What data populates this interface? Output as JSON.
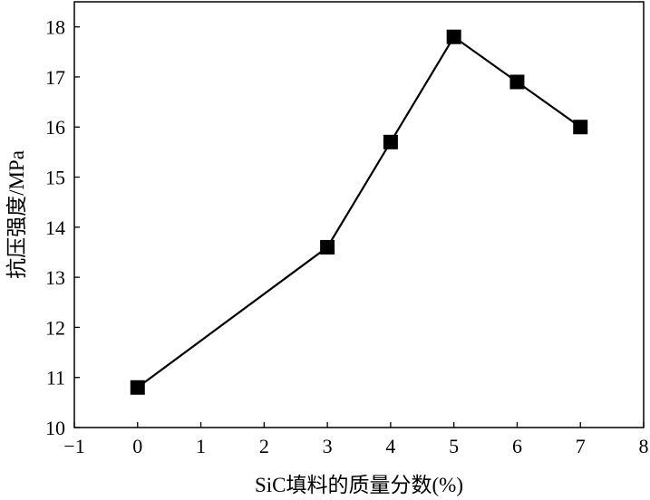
{
  "chart_data": {
    "type": "line",
    "title": "",
    "xlabel": "SiC填料的质量分数(%)",
    "ylabel": "抗压强度/MPa",
    "xlim": [
      -1,
      8
    ],
    "ylim": [
      10,
      18.5
    ],
    "xticks": [
      -1,
      0,
      1,
      2,
      3,
      4,
      5,
      6,
      7,
      8
    ],
    "xtick_labels": [
      "−1",
      "0",
      "1",
      "2",
      "3",
      "4",
      "5",
      "6",
      "7",
      "8"
    ],
    "yticks": [
      10,
      11,
      12,
      13,
      14,
      15,
      16,
      17,
      18
    ],
    "ytick_labels": [
      "10",
      "11",
      "12",
      "13",
      "14",
      "15",
      "16",
      "17",
      "18"
    ],
    "grid": false,
    "legend": "none",
    "marker": "square",
    "series": [
      {
        "x": [
          0,
          3,
          4,
          5,
          6,
          7
        ],
        "y": [
          10.8,
          13.6,
          15.7,
          17.8,
          16.9,
          16.0
        ],
        "color": "#000000"
      }
    ]
  }
}
